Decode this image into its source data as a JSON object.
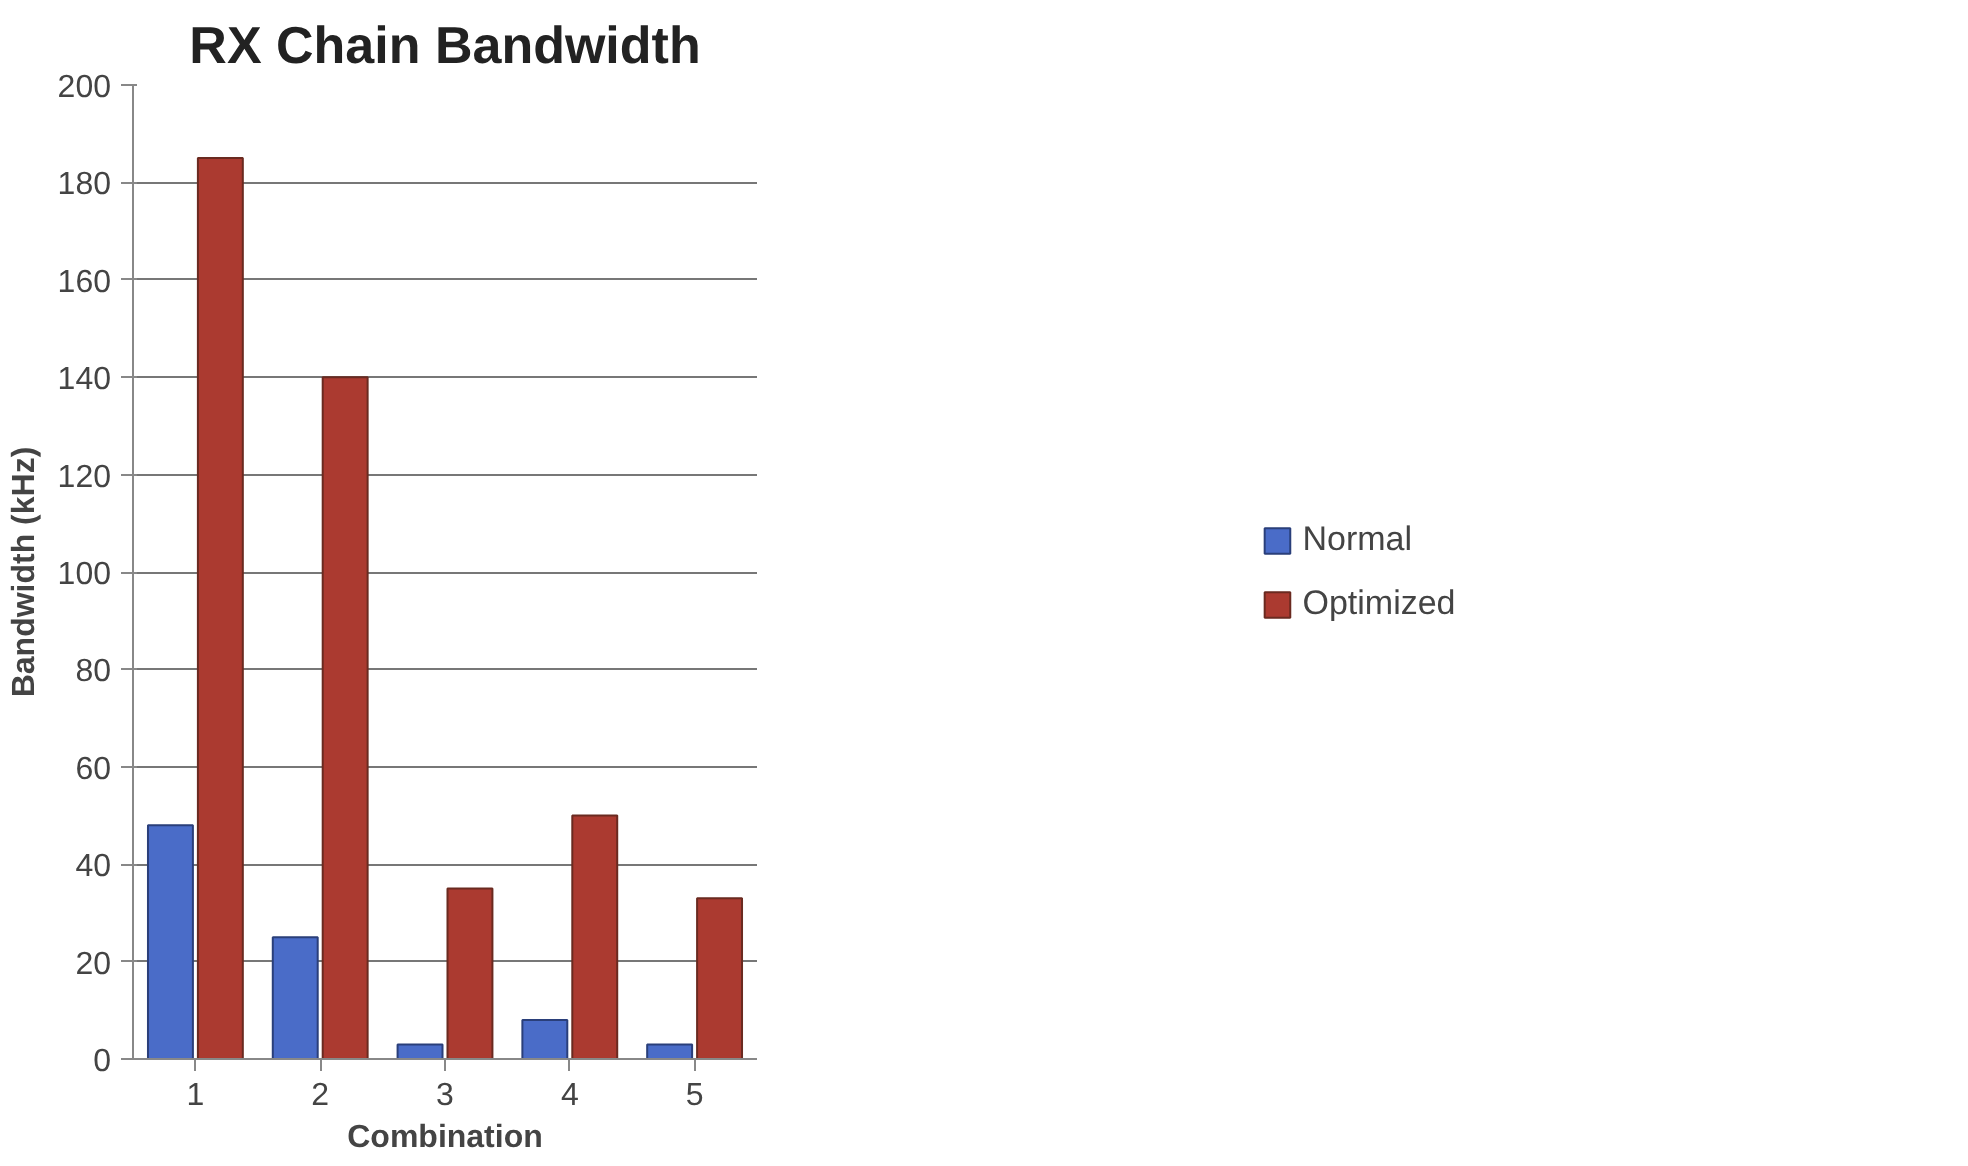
{
  "chart_data": {
    "type": "bar",
    "title": "RX Chain Bandwidth",
    "xlabel": "Combination",
    "ylabel": "Bandwidth (kHz)",
    "categories": [
      "1",
      "2",
      "3",
      "4",
      "5"
    ],
    "series": [
      {
        "name": "Normal",
        "color": "#4a6cc8",
        "values": [
          48,
          25,
          3,
          8,
          3
        ]
      },
      {
        "name": "Optimized",
        "color": "#ab3a30",
        "values": [
          185,
          140,
          35,
          50,
          33
        ]
      }
    ],
    "ylim": [
      0,
      200
    ],
    "yticks": [
      0,
      20,
      40,
      60,
      80,
      100,
      120,
      140,
      160,
      180,
      200
    ],
    "grid": "y",
    "legend": "right"
  }
}
